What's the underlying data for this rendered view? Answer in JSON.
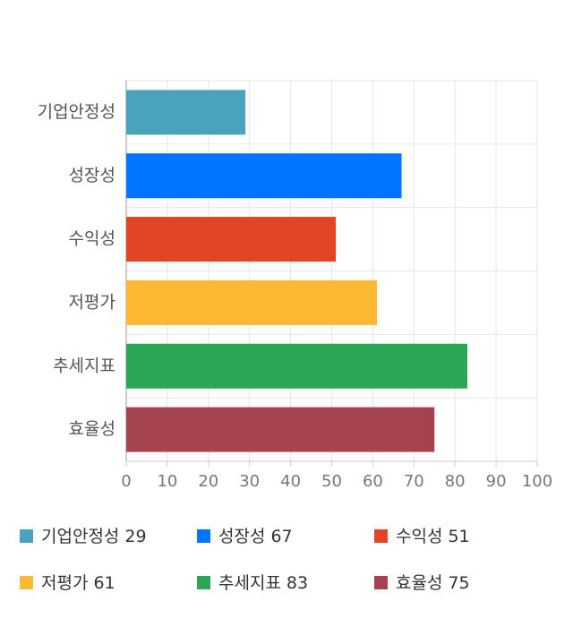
{
  "chart_data": {
    "type": "bar",
    "orientation": "horizontal",
    "categories": [
      "기업안정성",
      "성장성",
      "수익성",
      "저평가",
      "추세지표",
      "효율성"
    ],
    "values": [
      29,
      67,
      51,
      61,
      83,
      75
    ],
    "colors": [
      "#4aa3ba",
      "#0075ff",
      "#e24525",
      "#fdb933",
      "#2aa655",
      "#a64350"
    ],
    "xlim": [
      0,
      100
    ],
    "xticks": [
      0,
      10,
      20,
      30,
      40,
      50,
      60,
      70,
      80,
      90,
      100
    ],
    "grid": true,
    "legend": "bottom"
  }
}
